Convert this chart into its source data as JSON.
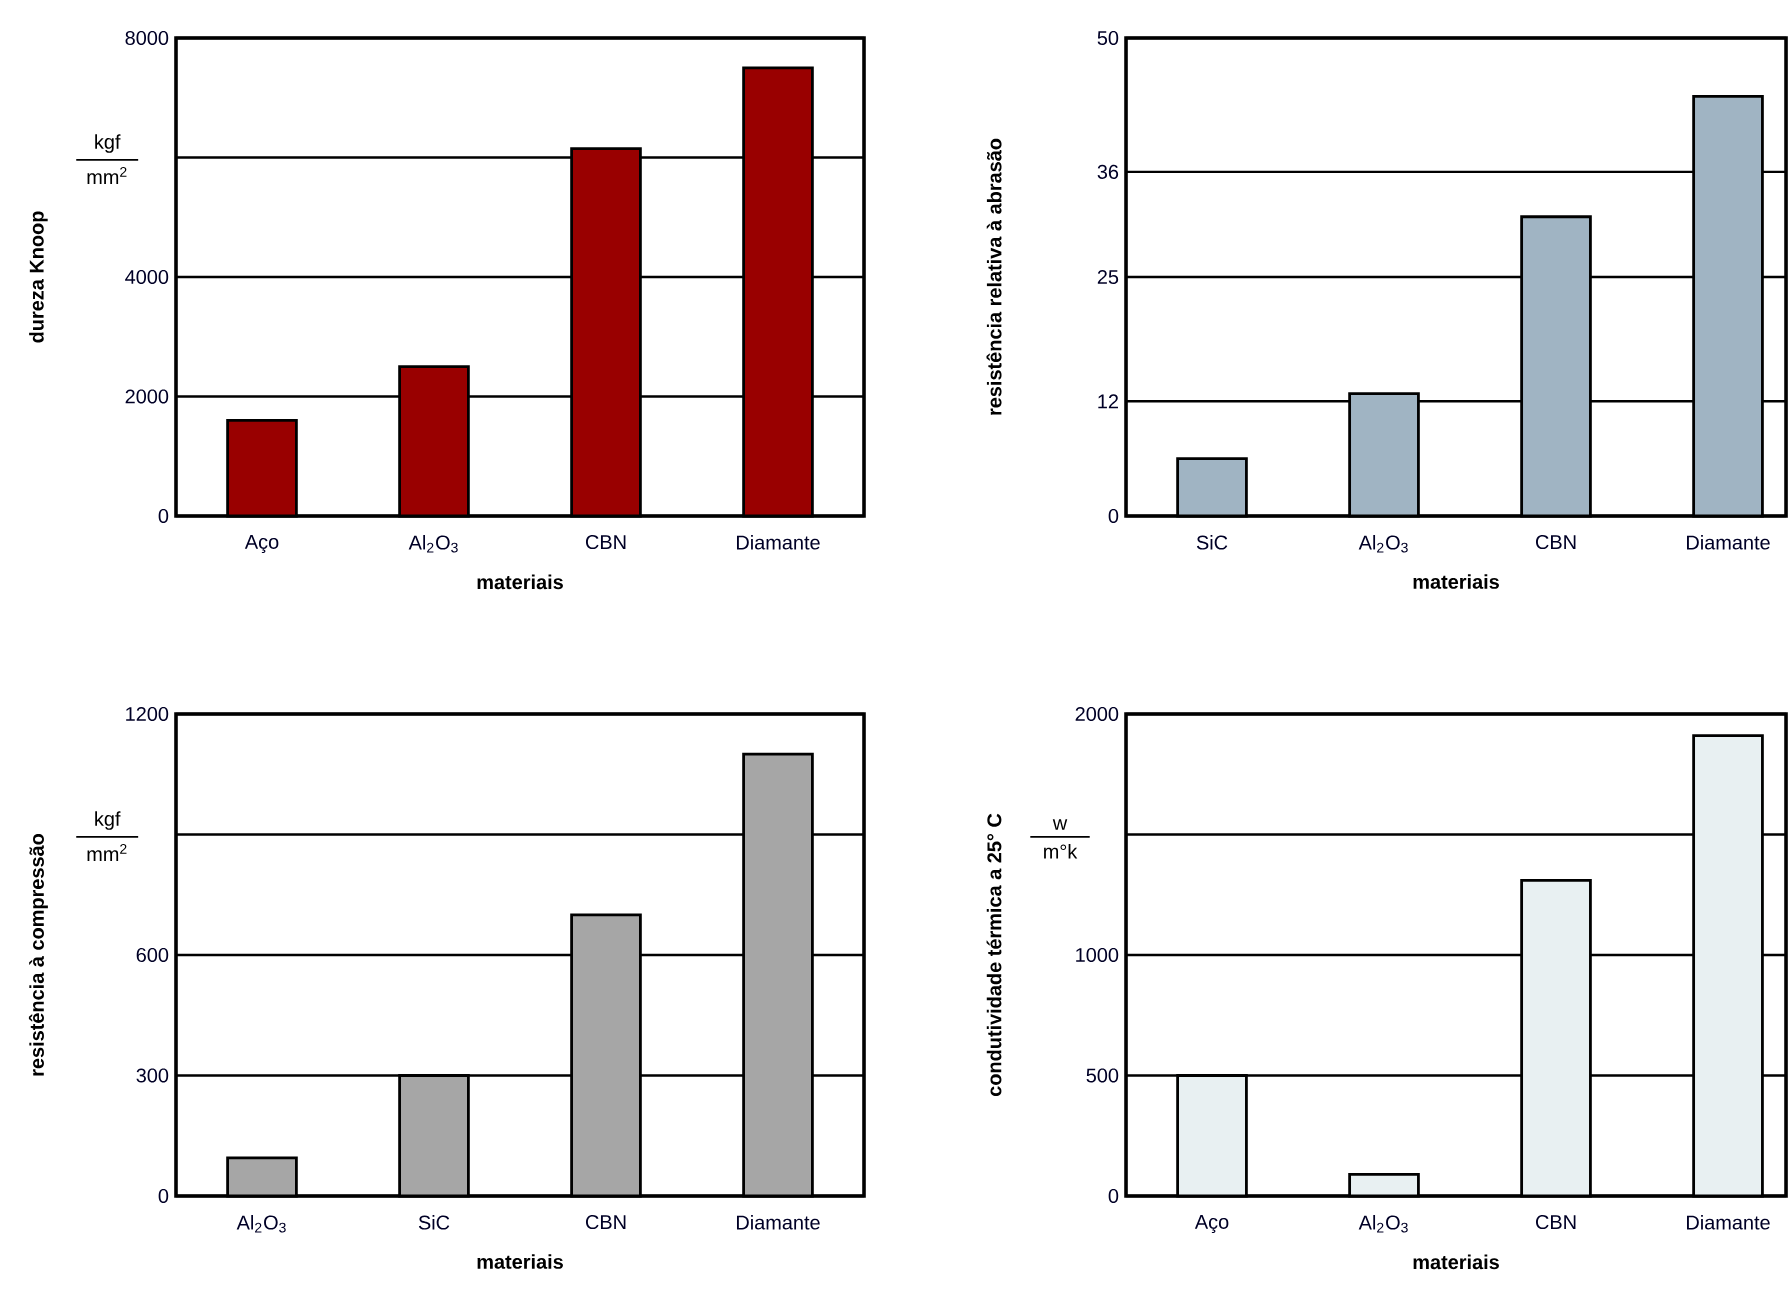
{
  "chart_data": [
    {
      "type": "bar",
      "categories": [
        "Aço",
        "Al$_{2}$O$_{3}$",
        "CBN",
        "Diamante"
      ],
      "values": [
        1600,
        2500,
        6150,
        7500
      ],
      "color": "#990000",
      "xlabel": "materiais",
      "ylabel": "dureza Knoop",
      "ylim": [
        0,
        8000
      ],
      "yticks": [
        0,
        2000,
        4000,
        {
          "value": 6000,
          "label": null
        },
        8000
      ],
      "grid": "y",
      "annotations": [
        "kgf",
        "mm$^{2}$"
      ]
    },
    {
      "type": "bar",
      "categories": [
        "SiC",
        "Al$_{2}$O$_{3}$",
        "CBN",
        "Diamante"
      ],
      "values": [
        6,
        12.8,
        31.3,
        43.9
      ],
      "color": "#a0b4c3",
      "xlabel": "materiais",
      "ylabel": "resistência relativa à abrasão",
      "ylim": [
        0,
        50
      ],
      "yticks": [
        0,
        12,
        25,
        36,
        50
      ],
      "grid": "y"
    },
    {
      "type": "bar",
      "categories": [
        "Al$_{2}$O$_{3}$",
        "SiC",
        "CBN",
        "Diamante"
      ],
      "values": [
        95,
        300,
        700,
        1100
      ],
      "color": "#a6a6a6",
      "xlabel": "materiais",
      "ylabel": "resistência à compressão",
      "ylim": [
        0,
        1200
      ],
      "yticks": [
        0,
        300,
        600,
        {
          "value": 900,
          "label": null
        },
        1200
      ],
      "grid": "y",
      "annotations": [
        "kgf",
        "mm$^{2}$"
      ]
    },
    {
      "type": "bar",
      "categories": [
        "Aço",
        "Al$_{2}$O$_{3}$",
        "CBN",
        "Diamante"
      ],
      "values": [
        500,
        90,
        1310,
        1910
      ],
      "color": "#e8f0f2",
      "xlabel": "materiais",
      "ylabel": "condutividade térmica a 25° C",
      "ylim": [
        0,
        2000
      ],
      "yticks": [
        0,
        500,
        1000,
        {
          "value": 1500,
          "label": null
        },
        2000
      ],
      "grid": "y",
      "annotations": [
        "w",
        "m°k"
      ]
    }
  ]
}
